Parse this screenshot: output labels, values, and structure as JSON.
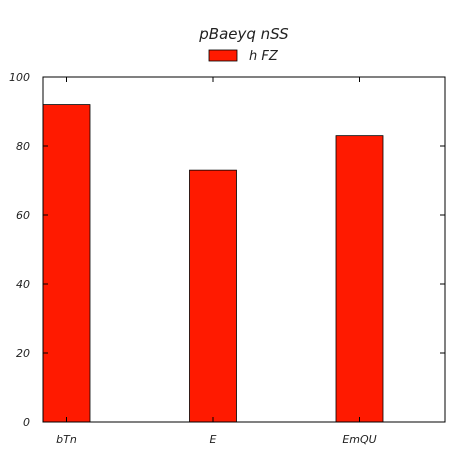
{
  "chart_data": {
    "type": "bar",
    "title": "pBaeyq nSS",
    "categories": [
      "bTn",
      "E",
      "EmQU"
    ],
    "series": [
      {
        "name": "h FZ",
        "values": [
          92,
          73,
          83
        ],
        "color": "#ff1a00"
      }
    ],
    "ylim": [
      0,
      100
    ],
    "yticks": [
      0,
      20,
      40,
      60,
      80,
      100
    ],
    "grid": false,
    "legend_position": "top-center"
  }
}
